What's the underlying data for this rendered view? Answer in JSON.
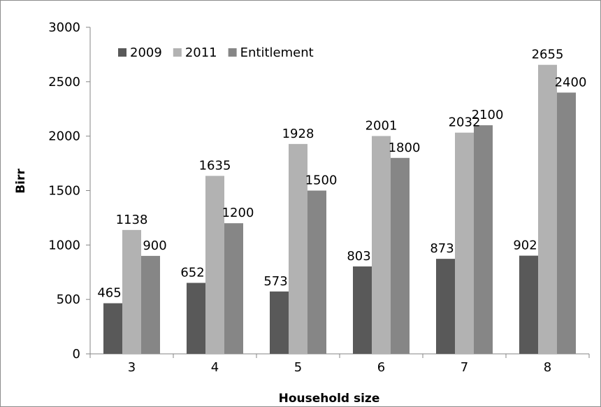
{
  "chart_data": {
    "type": "bar",
    "title": "",
    "xlabel": "Household size",
    "ylabel": "Birr",
    "categories": [
      "3",
      "4",
      "5",
      "6",
      "7",
      "8"
    ],
    "series": [
      {
        "name": "2009",
        "values": [
          465,
          652,
          573,
          803,
          873,
          902
        ],
        "color": "#595959"
      },
      {
        "name": "2011",
        "values": [
          1138,
          1635,
          1928,
          2001,
          2032,
          2655
        ],
        "color": "#b2b2b2"
      },
      {
        "name": "Entitlement",
        "values": [
          900,
          1200,
          1500,
          1800,
          2100,
          2400
        ],
        "color": "#868686"
      }
    ],
    "ylim": [
      0,
      3000
    ],
    "yticks": [
      0,
      500,
      1000,
      1500,
      2000,
      2500,
      3000
    ],
    "grid": false,
    "legend": "top-left"
  }
}
